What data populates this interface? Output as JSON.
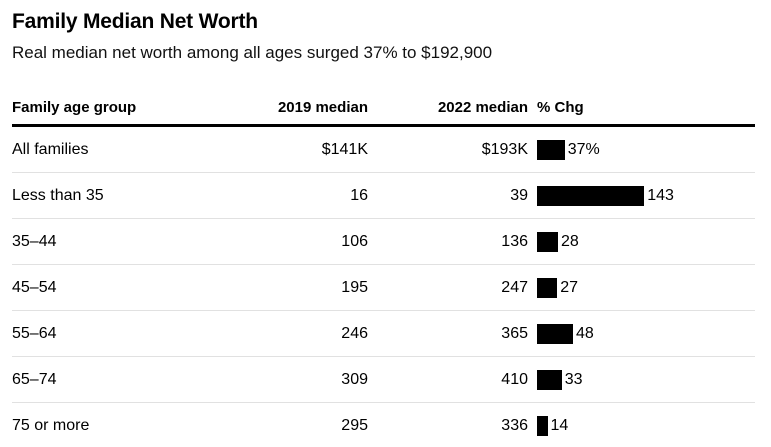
{
  "header": {
    "title": "Family Median Net Worth",
    "subtitle": "Real median net worth among all ages surged 37% to $192,900"
  },
  "table": {
    "columns": {
      "group": "Family age group",
      "median_2019": "2019 median",
      "median_2022": "2022 median",
      "pct_chg": "% Chg"
    },
    "rows": [
      {
        "group": "All families",
        "median_2019": "$141K",
        "median_2022": "$193K",
        "pct_change": 37,
        "pct_label": "37%"
      },
      {
        "group": "Less than 35",
        "median_2019": "16",
        "median_2022": "39",
        "pct_change": 143,
        "pct_label": "143"
      },
      {
        "group": "35–44",
        "median_2019": "106",
        "median_2022": "136",
        "pct_change": 28,
        "pct_label": "28"
      },
      {
        "group": "45–54",
        "median_2019": "195",
        "median_2022": "247",
        "pct_change": 27,
        "pct_label": "27"
      },
      {
        "group": "55–64",
        "median_2019": "246",
        "median_2022": "365",
        "pct_change": 48,
        "pct_label": "48"
      },
      {
        "group": "65–74",
        "median_2019": "309",
        "median_2022": "410",
        "pct_change": 33,
        "pct_label": "33"
      },
      {
        "group": "75 or more",
        "median_2019": "295",
        "median_2022": "336",
        "pct_change": 14,
        "pct_label": "14"
      }
    ]
  },
  "colors": {
    "bar": "#000000",
    "rule": "#000000",
    "row_divider": "#e1e1e1"
  },
  "chart_data": {
    "type": "bar",
    "orientation": "horizontal",
    "title": "Family Median Net Worth",
    "subtitle": "Real median net worth among all ages surged 37% to $192,900",
    "categories": [
      "All families",
      "Less than 35",
      "35–44",
      "45–54",
      "55–64",
      "65–74",
      "75 or more"
    ],
    "series": [
      {
        "name": "2019 median ($K)",
        "values": [
          141,
          16,
          106,
          195,
          246,
          309,
          295
        ]
      },
      {
        "name": "2022 median ($K)",
        "values": [
          193,
          39,
          136,
          247,
          365,
          410,
          336
        ]
      },
      {
        "name": "% Chg",
        "values": [
          37,
          143,
          28,
          27,
          48,
          33,
          14
        ]
      }
    ],
    "plotted_series": "% Chg",
    "xlim": [
      0,
      150
    ],
    "grid": false,
    "legend": false,
    "bar_color": "#000000"
  }
}
